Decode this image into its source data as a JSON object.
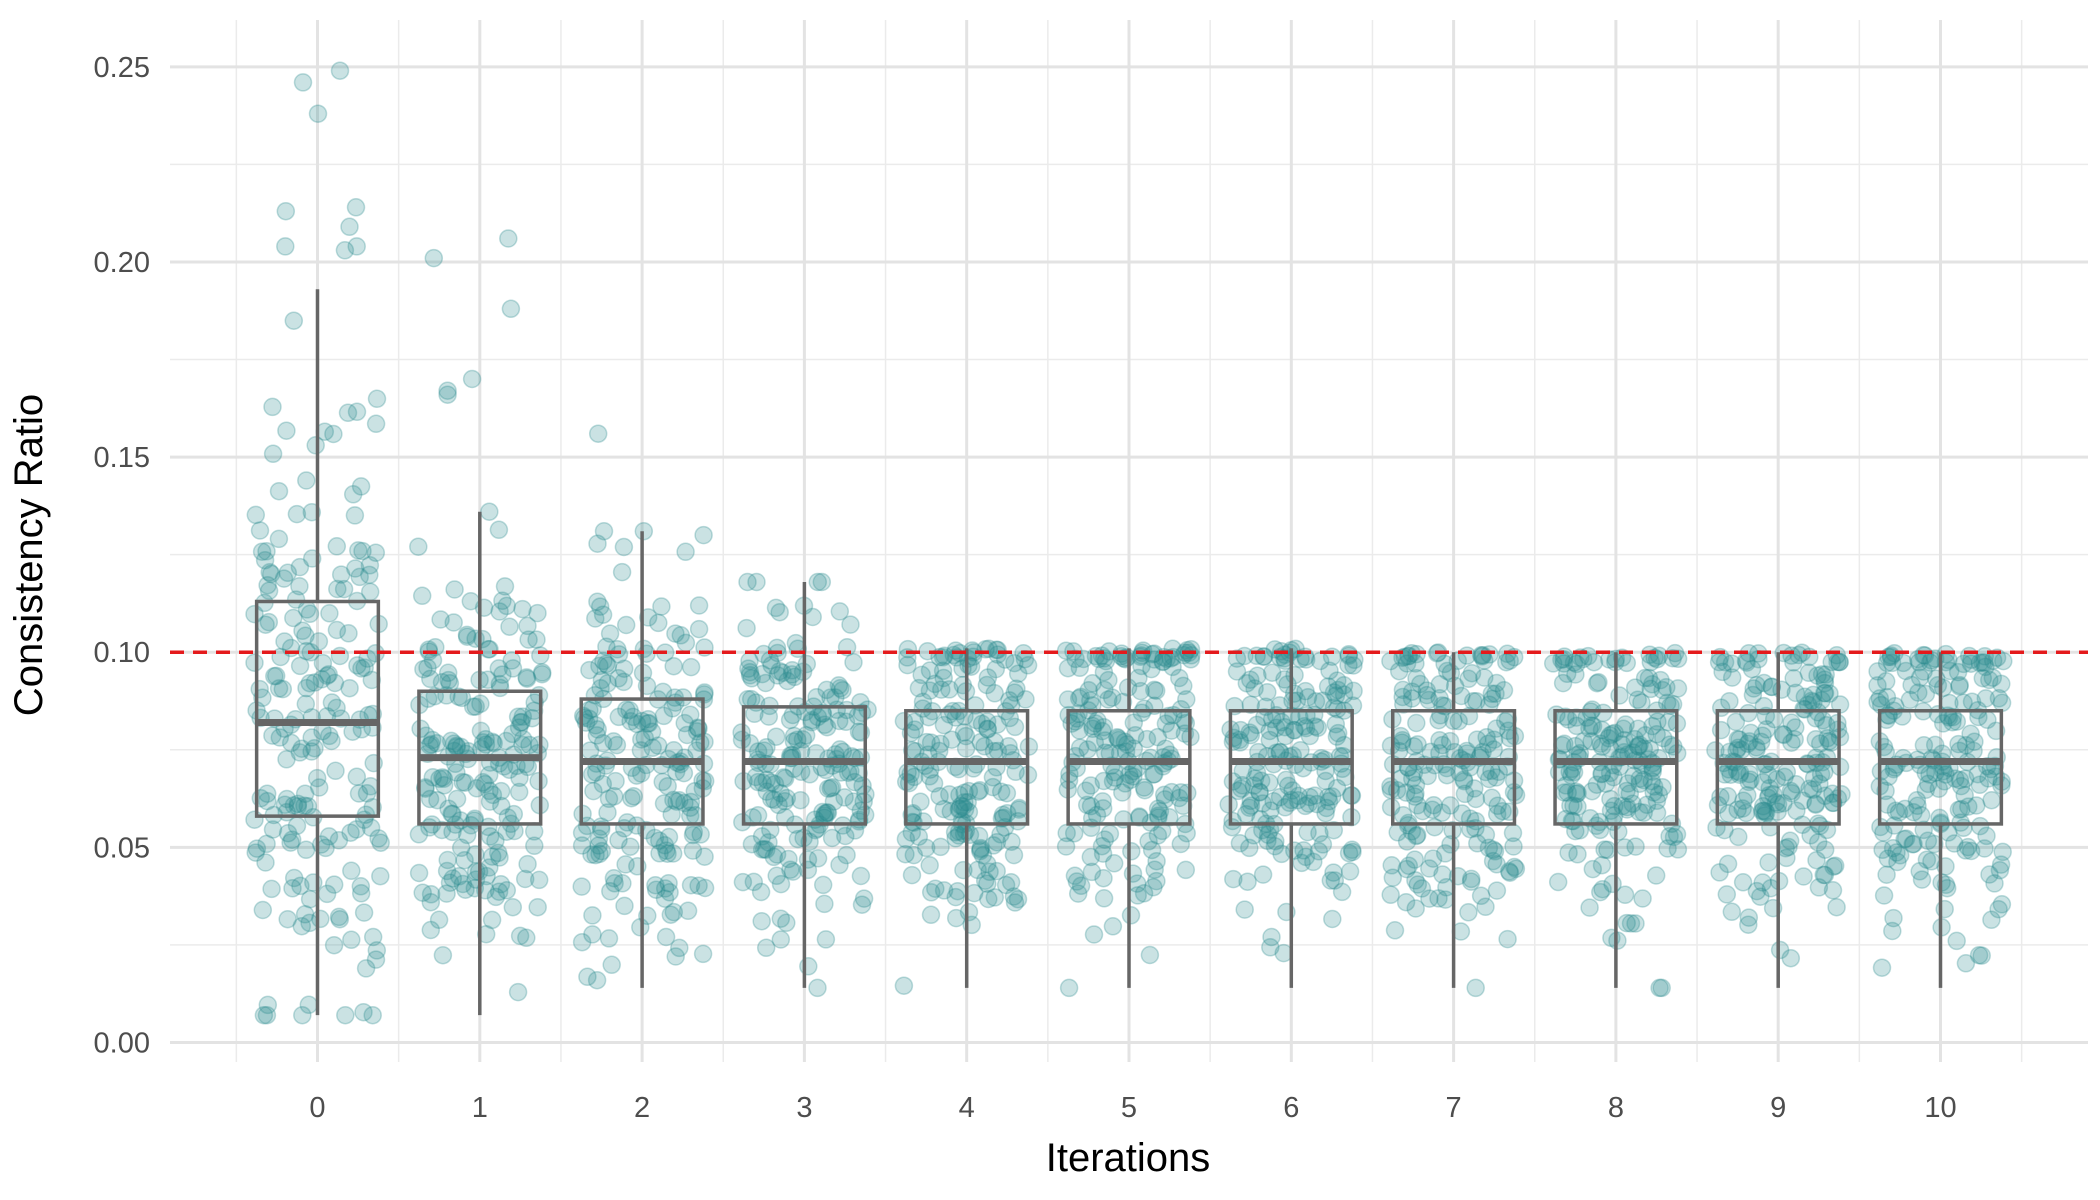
{
  "chart_data": {
    "type": "box",
    "overlay": "jitter-scatter",
    "xlabel": "Iterations",
    "ylabel": "Consistency Ratio",
    "categories": [
      "0",
      "1",
      "2",
      "3",
      "4",
      "5",
      "6",
      "7",
      "8",
      "9",
      "10"
    ],
    "ylim": [
      -0.005,
      0.262
    ],
    "y_ticks": [
      "0.00",
      "0.05",
      "0.10",
      "0.15",
      "0.20",
      "0.25"
    ],
    "grid": true,
    "reference_line": {
      "y": 0.1,
      "style": "dashed",
      "color": "#e41a1c"
    },
    "box_color": "#666666",
    "point_color": "#2a8b8e",
    "boxes": [
      {
        "category": "0",
        "whisker_low": 0.007,
        "q1": 0.058,
        "median": 0.082,
        "q3": 0.113,
        "whisker_high": 0.193
      },
      {
        "category": "1",
        "whisker_low": 0.007,
        "q1": 0.056,
        "median": 0.073,
        "q3": 0.09,
        "whisker_high": 0.136
      },
      {
        "category": "2",
        "whisker_low": 0.014,
        "q1": 0.056,
        "median": 0.072,
        "q3": 0.088,
        "whisker_high": 0.131
      },
      {
        "category": "3",
        "whisker_low": 0.014,
        "q1": 0.056,
        "median": 0.072,
        "q3": 0.086,
        "whisker_high": 0.118
      },
      {
        "category": "4",
        "whisker_low": 0.014,
        "q1": 0.056,
        "median": 0.072,
        "q3": 0.085,
        "whisker_high": 0.101
      },
      {
        "category": "5",
        "whisker_low": 0.014,
        "q1": 0.056,
        "median": 0.072,
        "q3": 0.085,
        "whisker_high": 0.101
      },
      {
        "category": "6",
        "whisker_low": 0.014,
        "q1": 0.056,
        "median": 0.072,
        "q3": 0.085,
        "whisker_high": 0.101
      },
      {
        "category": "7",
        "whisker_low": 0.014,
        "q1": 0.056,
        "median": 0.072,
        "q3": 0.085,
        "whisker_high": 0.1
      },
      {
        "category": "8",
        "whisker_low": 0.014,
        "q1": 0.056,
        "median": 0.072,
        "q3": 0.085,
        "whisker_high": 0.1
      },
      {
        "category": "9",
        "whisker_low": 0.014,
        "q1": 0.056,
        "median": 0.072,
        "q3": 0.085,
        "whisker_high": 0.1
      },
      {
        "category": "10",
        "whisker_low": 0.014,
        "q1": 0.056,
        "median": 0.072,
        "q3": 0.085,
        "whisker_high": 0.1
      }
    ],
    "outliers": [
      {
        "category": "0",
        "values": [
          0.249,
          0.246,
          0.238,
          0.214,
          0.213,
          0.209,
          0.204,
          0.204,
          0.203
        ]
      },
      {
        "category": "1",
        "values": [
          0.206,
          0.201,
          0.188,
          0.17,
          0.167,
          0.166
        ]
      },
      {
        "category": "2",
        "values": [
          0.156
        ]
      }
    ],
    "points_per_iteration": 200
  }
}
